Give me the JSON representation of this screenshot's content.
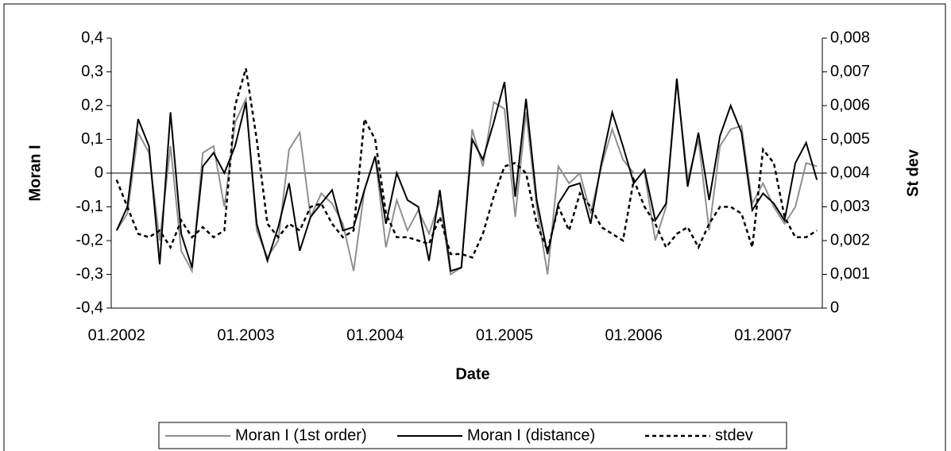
{
  "chart_data": {
    "type": "line",
    "x_label": "Date",
    "y_label": "Moran I",
    "y2_label": "St dev",
    "categories": [
      "01.2002",
      null,
      null,
      null,
      null,
      null,
      null,
      null,
      null,
      null,
      null,
      null,
      "01.2003",
      null,
      null,
      null,
      null,
      null,
      null,
      null,
      null,
      null,
      null,
      null,
      "01.2004",
      null,
      null,
      null,
      null,
      null,
      null,
      null,
      null,
      null,
      null,
      null,
      "01.2005",
      null,
      null,
      null,
      null,
      null,
      null,
      null,
      null,
      null,
      null,
      null,
      "01.2006",
      null,
      null,
      null,
      null,
      null,
      null,
      null,
      null,
      null,
      null,
      null,
      "01.2007",
      null,
      null,
      null,
      null,
      null
    ],
    "ylim": [
      -0.4,
      0.4
    ],
    "yticks": [
      {
        "value": -0.4,
        "label": "-0,4"
      },
      {
        "value": -0.3,
        "label": "-0,3"
      },
      {
        "value": -0.2,
        "label": "-0,2"
      },
      {
        "value": -0.1,
        "label": "-0,1"
      },
      0,
      {
        "value": 0.1,
        "label": "0,1"
      },
      {
        "value": 0.2,
        "label": "0,2"
      },
      {
        "value": 0.3,
        "label": "0,3"
      },
      {
        "value": 0.4,
        "label": "0,4"
      }
    ],
    "y2lim": [
      0,
      0.008
    ],
    "y2ticks": [
      0,
      {
        "value": 0.001,
        "label": "0,001"
      },
      {
        "value": 0.002,
        "label": "0,002"
      },
      {
        "value": 0.003,
        "label": "0,003"
      },
      {
        "value": 0.004,
        "label": "0,004"
      },
      {
        "value": 0.005,
        "label": "0,005"
      },
      {
        "value": 0.006,
        "label": "0,006"
      },
      {
        "value": 0.007,
        "label": "0,007"
      },
      {
        "value": 0.008,
        "label": "0,008"
      }
    ],
    "series": [
      {
        "name": "Moran I (1st order)",
        "color": "#909090",
        "dash": "solid",
        "values": [
          -0.17,
          -0.12,
          0.12,
          0.06,
          -0.2,
          0.08,
          -0.23,
          -0.29,
          0.06,
          0.08,
          -0.1,
          0.15,
          0.22,
          -0.17,
          -0.25,
          -0.2,
          0.07,
          0.12,
          -0.13,
          -0.06,
          -0.09,
          -0.15,
          -0.29,
          -0.05,
          0.05,
          -0.22,
          -0.08,
          -0.17,
          -0.11,
          -0.18,
          -0.08,
          -0.3,
          -0.28,
          0.13,
          0.02,
          0.21,
          0.19,
          -0.13,
          0.18,
          -0.1,
          -0.3,
          0.02,
          -0.03,
          0.0,
          -0.12,
          0.02,
          0.13,
          0.04,
          0.0,
          0.0,
          -0.2,
          -0.1,
          0.27,
          -0.02,
          0.1,
          -0.17,
          0.08,
          0.13,
          0.14,
          -0.09,
          -0.03,
          -0.1,
          -0.15,
          -0.1,
          0.03,
          0.02
        ]
      },
      {
        "name": "Moran I (distance)",
        "color": "#000000",
        "dash": "solid",
        "values": [
          -0.17,
          -0.1,
          0.16,
          0.08,
          -0.27,
          0.18,
          -0.18,
          -0.28,
          0.02,
          0.06,
          0.0,
          0.08,
          0.21,
          -0.15,
          -0.26,
          -0.16,
          -0.03,
          -0.23,
          -0.13,
          -0.09,
          -0.05,
          -0.17,
          -0.16,
          -0.05,
          0.05,
          -0.15,
          0.0,
          -0.08,
          -0.1,
          -0.26,
          -0.05,
          -0.29,
          -0.28,
          0.1,
          0.04,
          0.15,
          0.27,
          -0.07,
          0.22,
          -0.08,
          -0.24,
          -0.09,
          -0.04,
          -0.03,
          -0.15,
          0.03,
          0.18,
          0.08,
          -0.03,
          0.01,
          -0.14,
          -0.09,
          0.28,
          -0.04,
          0.12,
          -0.08,
          0.11,
          0.2,
          0.12,
          -0.11,
          -0.06,
          -0.09,
          -0.14,
          0.03,
          0.09,
          -0.02
        ]
      },
      {
        "name": "stdev",
        "color": "#000000",
        "dash": "dotted",
        "axis": "y2",
        "values": [
          0.0038,
          0.003,
          0.0022,
          0.0021,
          0.0023,
          0.0018,
          0.0026,
          0.0021,
          0.0024,
          0.0021,
          0.0023,
          0.006,
          0.0071,
          0.005,
          0.0025,
          0.0021,
          0.0025,
          0.0023,
          0.003,
          0.0031,
          0.0025,
          0.0021,
          0.0023,
          0.0056,
          0.005,
          0.0028,
          0.0021,
          0.0021,
          0.002,
          0.0019,
          0.0027,
          0.0016,
          0.0016,
          0.0015,
          0.0022,
          0.0033,
          0.0042,
          0.0043,
          0.004,
          0.0025,
          0.0017,
          0.003,
          0.0023,
          0.0034,
          0.003,
          0.0024,
          0.0022,
          0.002,
          0.0038,
          0.003,
          0.0025,
          0.0018,
          0.0022,
          0.0024,
          0.0018,
          0.0025,
          0.003,
          0.003,
          0.0028,
          0.0018,
          0.0047,
          0.0043,
          0.0027,
          0.0021,
          0.0021,
          0.0023
        ]
      }
    ]
  }
}
